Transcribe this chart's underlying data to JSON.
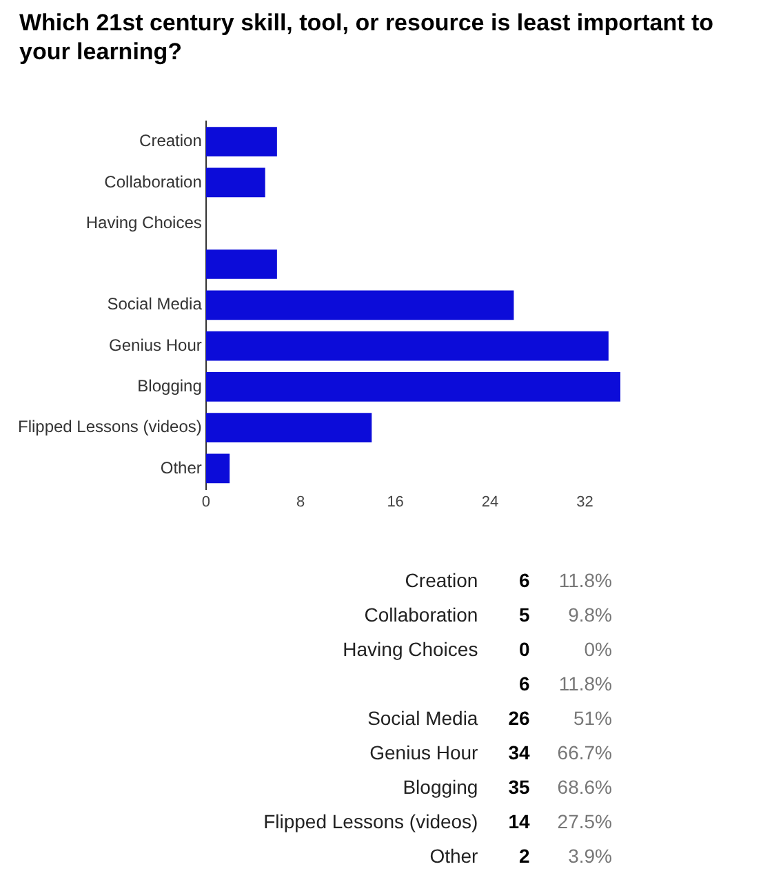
{
  "chart_data": {
    "type": "bar",
    "orientation": "horizontal",
    "title": "Which 21st century skill, tool, or resource is least important to your learning?",
    "categories": [
      "Creation",
      "Collaboration",
      "Having Choices",
      null,
      "Social Media",
      "Genius Hour",
      "Blogging",
      "Flipped Lessons (videos)",
      "Other"
    ],
    "values": [
      6,
      5,
      0,
      6,
      26,
      34,
      35,
      14,
      2
    ],
    "color": "#0c0cd9",
    "xlim": [
      0,
      35
    ],
    "xticks": [
      0,
      8,
      16,
      24,
      32
    ],
    "grid": false,
    "legend": false,
    "annotations": [
      "6",
      "11.8%",
      "5",
      "9.8%",
      "0",
      "0%",
      "6",
      "11.8%",
      "26",
      "51%",
      "34",
      "66.7%",
      "35",
      "68.6%",
      "14",
      "27.5%",
      "2",
      "3.9%"
    ]
  }
}
